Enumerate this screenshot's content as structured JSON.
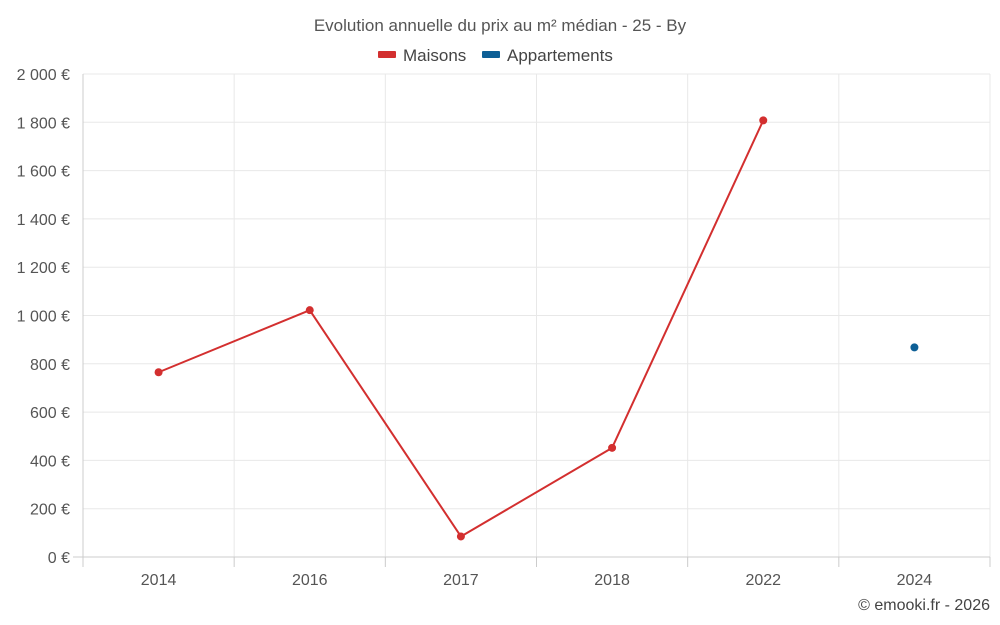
{
  "chart_data": {
    "type": "line",
    "title": "Evolution annuelle du prix au m² médian - 25 - By",
    "categories": [
      "2014",
      "2016",
      "2017",
      "2018",
      "2022",
      "2024"
    ],
    "series": [
      {
        "name": "Maisons",
        "color": "#d32f2f",
        "values": [
          765,
          1022,
          85,
          452,
          1808,
          null
        ]
      },
      {
        "name": "Appartements",
        "color": "#0d5f96",
        "values": [
          null,
          null,
          null,
          null,
          null,
          868
        ]
      }
    ],
    "ylim": [
      0,
      2000
    ],
    "yticks": [
      0,
      200,
      400,
      600,
      800,
      1000,
      1200,
      1400,
      1600,
      1800,
      2000
    ],
    "ytick_labels": [
      "0 €",
      "200 €",
      "400 €",
      "600 €",
      "800 €",
      "1 000 €",
      "1 200 €",
      "1 400 €",
      "1 600 €",
      "1 800 €",
      "2 000 €"
    ],
    "xlabel": "",
    "ylabel": "",
    "legend_position": "top-center",
    "grid": true
  },
  "credit": "© emooki.fr - 2026"
}
